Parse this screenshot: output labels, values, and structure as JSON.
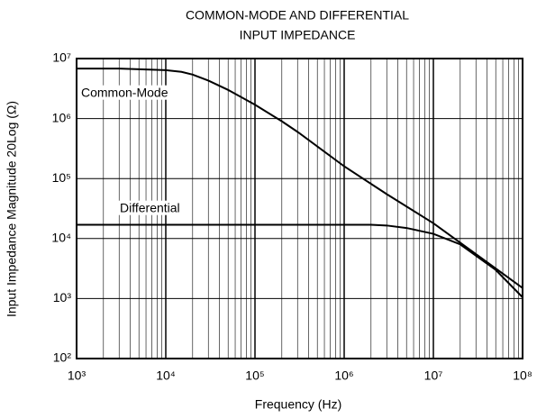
{
  "chart_data": {
    "type": "line",
    "title": [
      "COMMON-MODE AND DIFFERENTIAL",
      "INPUT IMPEDANCE"
    ],
    "xlabel": "Frequency (Hz)",
    "ylabel": "Input Impedance Magnitude 20Log (Ω)",
    "xscale": "log",
    "yscale": "log",
    "grid": true,
    "color": "#000000",
    "xlim": [
      1000,
      100000000
    ],
    "ylim": [
      100,
      10000000
    ],
    "xticks": [
      {
        "value": 1000,
        "label": "10³"
      },
      {
        "value": 10000,
        "label": "10⁴"
      },
      {
        "value": 100000,
        "label": "10⁵"
      },
      {
        "value": 1000000,
        "label": "10⁶"
      },
      {
        "value": 10000000,
        "label": "10⁷"
      },
      {
        "value": 100000000,
        "label": "10⁸"
      }
    ],
    "yticks": [
      {
        "value": 100,
        "label": "10²"
      },
      {
        "value": 1000,
        "label": "10³"
      },
      {
        "value": 10000,
        "label": "10⁴"
      },
      {
        "value": 100000,
        "label": "10⁵"
      },
      {
        "value": 1000000,
        "label": "10⁶"
      },
      {
        "value": 10000000,
        "label": "10⁷"
      }
    ],
    "series": [
      {
        "name": "Common-Mode",
        "x": [
          1000,
          3000,
          10000,
          15000,
          20000,
          30000,
          50000,
          100000,
          200000,
          300000,
          1000000,
          3000000,
          10000000,
          30000000,
          100000000
        ],
        "values": [
          6800000,
          6800000,
          6400000,
          6000000,
          5400000,
          4300000,
          3000000,
          1700000,
          900000,
          600000,
          160000,
          55000,
          18000,
          5500,
          1500
        ]
      },
      {
        "name": "Differential",
        "x": [
          1000,
          100000,
          1000000,
          2000000,
          3000000,
          5000000,
          10000000,
          20000000,
          50000000,
          100000000
        ],
        "values": [
          17000,
          17000,
          17000,
          17000,
          16500,
          15000,
          12000,
          8000,
          3000,
          1050
        ]
      }
    ]
  }
}
